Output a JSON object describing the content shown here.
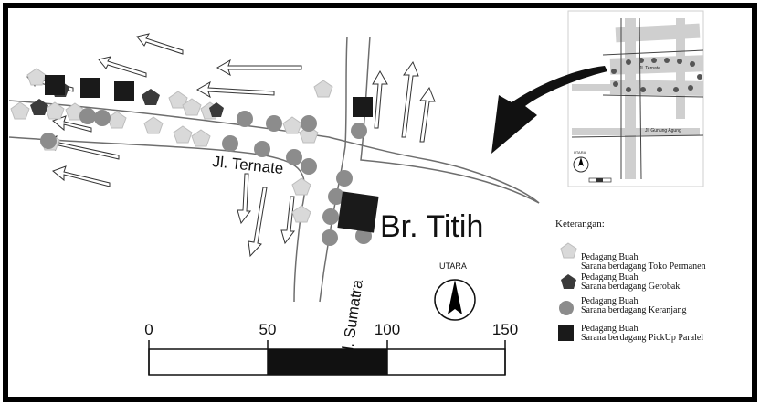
{
  "map": {
    "streets": {
      "ternate": "Jl. Ternate",
      "sumatra": "Jl. Sumatra"
    },
    "landmark": "Br. Titih",
    "north_label": "UTARA",
    "legend": {
      "title": "Keterangan:",
      "items": [
        {
          "line1": "Pedagang Buah",
          "line2": "Sarana berdagang Toko Permanen",
          "symbol": "pentagon-light",
          "color": "#d9d9d9"
        },
        {
          "line1": "Pedagang Buah",
          "line2": "Sarana berdagang Gerobak",
          "symbol": "pentagon-dark",
          "color": "#3a3a3a"
        },
        {
          "line1": "Pedagang Buah",
          "line2": "Sarana berdagang Keranjang",
          "symbol": "circle-grey",
          "color": "#8c8c8c"
        },
        {
          "line1": "Pedagang Buah",
          "line2": "Sarana berdagang PickUp Paralel",
          "symbol": "square-black",
          "color": "#1a1a1a"
        }
      ]
    },
    "scale_bar": {
      "ticks": [
        "0",
        "50",
        "100",
        "150"
      ]
    },
    "inset": {
      "labels": [
        "Jl. Ternate",
        "Jl. Gunung Agung",
        "UTARA"
      ]
    },
    "colors": {
      "border": "#000000",
      "road": "#6e6e6e",
      "inset_road": "#c8c8c8"
    }
  }
}
